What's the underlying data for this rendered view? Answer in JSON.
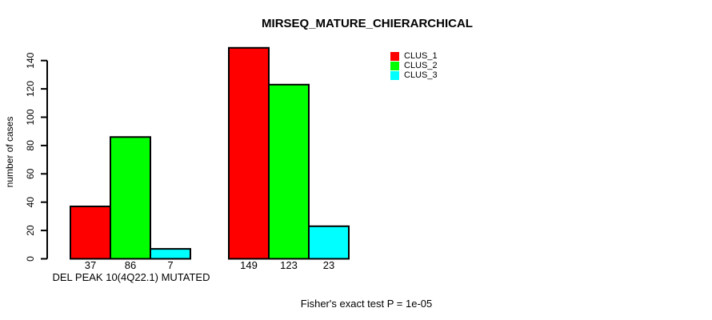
{
  "chart_data": {
    "type": "bar",
    "title": "MIRSEQ_MATURE_CHIERARCHICAL",
    "ylabel": "number of cases",
    "xlabel": "",
    "categories": [
      "DEL PEAK 10(4Q22.1) MUTATED",
      ""
    ],
    "series": [
      {
        "name": "CLUS_1",
        "color": "#FF0000",
        "values": [
          37,
          149
        ]
      },
      {
        "name": "CLUS_2",
        "color": "#00FF00",
        "values": [
          86,
          123
        ]
      },
      {
        "name": "CLUS_3",
        "color": "#00FFFF",
        "values": [
          7,
          23
        ]
      }
    ],
    "yticks": [
      0,
      20,
      40,
      60,
      80,
      100,
      120,
      140
    ],
    "ylim": [
      0,
      149
    ],
    "grid": false,
    "legend_position": "top-right",
    "bar_value_labels_shown": true,
    "footnote": "Fisher's exact test P = 1e-05",
    "axis_color": "#000000",
    "bar_border_color": "#000000",
    "background_color": "#FFFFFF"
  }
}
